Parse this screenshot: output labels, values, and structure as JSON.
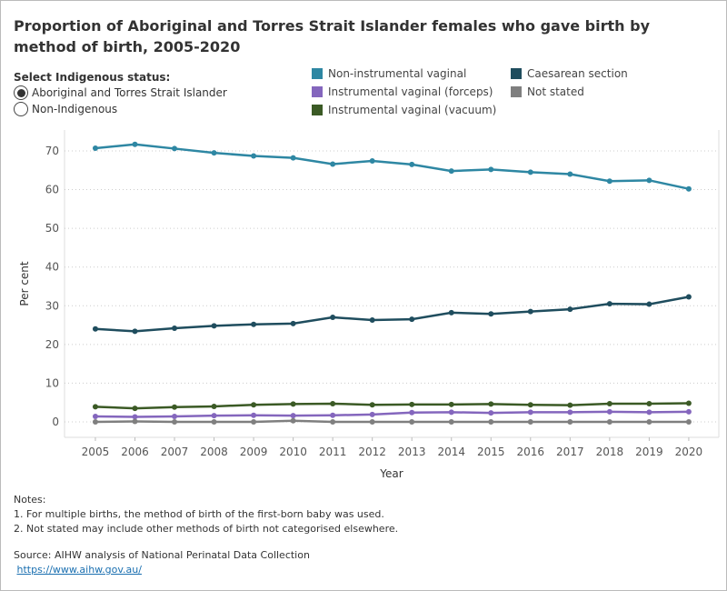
{
  "chart_data": {
    "type": "line",
    "title": "Proportion of Aboriginal and Torres Strait Islander females who gave birth by method of birth, 2005-2020",
    "x_label": "Year",
    "y_label": "Per cent",
    "x": [
      2005,
      2006,
      2007,
      2008,
      2009,
      2010,
      2011,
      2012,
      2013,
      2014,
      2015,
      2016,
      2017,
      2018,
      2019,
      2020
    ],
    "xlim": [
      2004.22,
      2020.76
    ],
    "xticks": [
      2005,
      2006,
      2007,
      2008,
      2009,
      2010,
      2011,
      2012,
      2013,
      2014,
      2015,
      2016,
      2017,
      2018,
      2019,
      2020
    ],
    "ylim": [
      -4,
      75.4
    ],
    "yticks": [
      0,
      10,
      20,
      30,
      40,
      50,
      60,
      70
    ],
    "grid": true,
    "series": [
      {
        "name": "Non-instrumental vaginal",
        "color": "#2e87a3",
        "values": [
          70.7,
          71.7,
          70.6,
          69.5,
          68.7,
          68.2,
          66.6,
          67.4,
          66.5,
          64.8,
          65.2,
          64.5,
          64.0,
          62.2,
          62.4,
          60.2
        ]
      },
      {
        "name": "Instrumental vaginal (forceps)",
        "color": "#8466bd",
        "values": [
          1.4,
          1.3,
          1.4,
          1.6,
          1.7,
          1.6,
          1.7,
          1.9,
          2.4,
          2.5,
          2.3,
          2.5,
          2.5,
          2.6,
          2.5,
          2.6
        ]
      },
      {
        "name": "Instrumental vaginal (vacuum)",
        "color": "#3b5a25",
        "values": [
          3.9,
          3.5,
          3.8,
          4.0,
          4.4,
          4.6,
          4.7,
          4.4,
          4.5,
          4.5,
          4.6,
          4.4,
          4.3,
          4.7,
          4.7,
          4.8
        ]
      },
      {
        "name": "Caesarean section",
        "color": "#1f4d5e",
        "values": [
          24.0,
          23.4,
          24.2,
          24.8,
          25.2,
          25.4,
          27.0,
          26.3,
          26.5,
          28.2,
          27.9,
          28.5,
          29.1,
          30.5,
          30.4,
          32.3
        ]
      },
      {
        "name": "Not stated",
        "color": "#7f7f7f",
        "values": [
          0.0,
          0.1,
          0.0,
          0.0,
          0.0,
          0.3,
          0.0,
          0.0,
          0.0,
          0.0,
          0.0,
          0.0,
          0.0,
          0.0,
          0.0,
          0.0
        ]
      }
    ]
  },
  "controls": {
    "label": "Select Indigenous status:",
    "options": [
      "Aboriginal and Torres Strait Islander",
      "Non-Indigenous"
    ],
    "selected_index": 0
  },
  "notes": {
    "heading": "Notes:",
    "items": [
      "1.  For multiple births, the method of birth of the first-born baby was used.",
      "2. Not stated may include other methods of birth not categorised elsewhere."
    ]
  },
  "source": {
    "text": "Source:  AIHW analysis of National Perinatal Data Collection",
    "link": "https://www.aihw.gov.au/"
  }
}
